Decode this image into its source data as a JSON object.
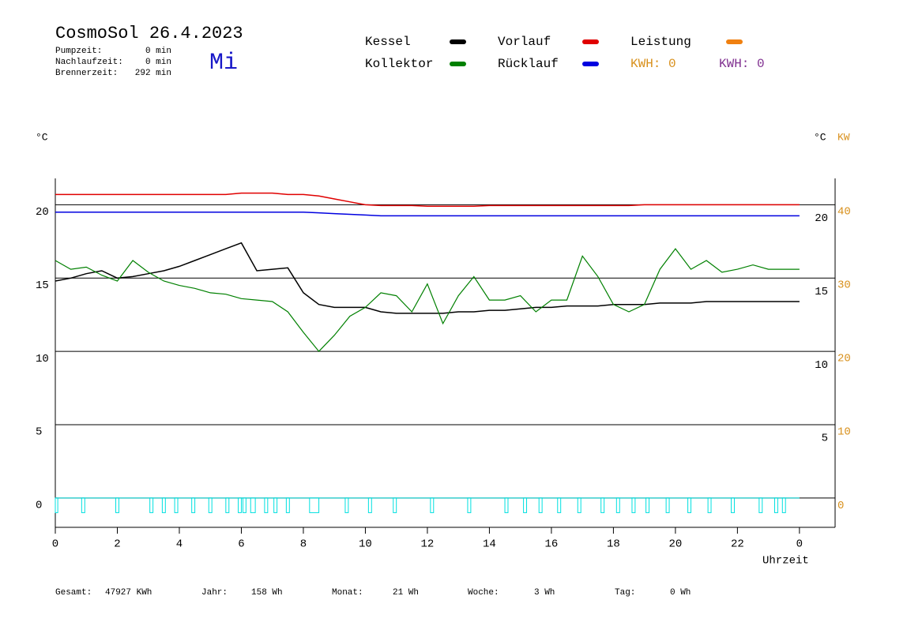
{
  "chart_data": {
    "type": "line",
    "title": "CosmoSol 26.4.2023",
    "weekday": "Mi",
    "stats": [
      {
        "label": "Pumpzeit:",
        "value": "0 min"
      },
      {
        "label": "Nachlaufzeit:",
        "value": "0 min"
      },
      {
        "label": "Brennerzeit:",
        "value": "292 min"
      }
    ],
    "kwh_labels": [
      {
        "text": "KWH: 0",
        "color": "#d8901c"
      },
      {
        "text": "KWH: 0",
        "color": "#803090"
      }
    ],
    "ylabel": "°C",
    "y2label_celsius": "°C",
    "y2label": "KW",
    "xlabel": "Uhrzeit",
    "xlim": [
      0,
      25.15
    ],
    "ylim": [
      -2,
      21.8
    ],
    "y2lim": [
      -3,
      44.5
    ],
    "xticks": [
      0,
      2,
      4,
      6,
      8,
      10,
      12,
      14,
      16,
      18,
      20,
      22,
      {
        "value": 24,
        "label": "0"
      }
    ],
    "yticks": [
      0,
      5,
      10,
      15,
      20
    ],
    "yticks_right": [
      5,
      10,
      15,
      20
    ],
    "y2ticks": [
      0,
      10,
      20,
      30,
      40
    ],
    "grid": true,
    "x": [
      0,
      0.5,
      1,
      1.5,
      2,
      2.5,
      3,
      3.5,
      4,
      4.5,
      5,
      5.5,
      6,
      6.5,
      7,
      7.5,
      8,
      8.5,
      9,
      9.5,
      10,
      10.5,
      11,
      11.5,
      12,
      12.5,
      13,
      13.5,
      14,
      14.5,
      15,
      15.5,
      16,
      16.5,
      17,
      17.5,
      18,
      18.5,
      19,
      19.5,
      20,
      20.5,
      21,
      21.5,
      22,
      22.5,
      23,
      23.5,
      24
    ],
    "series": [
      {
        "name": "Kessel",
        "color": "#000000",
        "values": [
          14.8,
          15.0,
          15.3,
          15.5,
          15.0,
          15.1,
          15.3,
          15.5,
          15.8,
          16.2,
          16.6,
          17.0,
          17.4,
          15.5,
          15.6,
          15.7,
          14.0,
          13.2,
          13.0,
          13.0,
          13.0,
          12.7,
          12.6,
          12.6,
          12.6,
          12.6,
          12.7,
          12.7,
          12.8,
          12.8,
          12.9,
          13.0,
          13.0,
          13.1,
          13.1,
          13.1,
          13.2,
          13.2,
          13.2,
          13.3,
          13.3,
          13.3,
          13.4,
          13.4,
          13.4,
          13.4,
          13.4,
          13.4,
          13.4
        ]
      },
      {
        "name": "Kollektor",
        "color": "#008000",
        "values": [
          16.2,
          15.6,
          15.75,
          15.2,
          14.8,
          16.2,
          15.4,
          14.8,
          14.5,
          14.3,
          14.0,
          13.9,
          13.6,
          13.5,
          13.4,
          12.7,
          11.3,
          10.0,
          11.1,
          12.4,
          13.0,
          14.0,
          13.8,
          12.7,
          14.6,
          11.9,
          13.8,
          15.1,
          13.5,
          13.5,
          13.8,
          12.7,
          13.5,
          13.5,
          16.5,
          15.1,
          13.2,
          12.7,
          13.2,
          15.6,
          17.0,
          15.6,
          16.2,
          15.4,
          15.6,
          15.9,
          15.6,
          15.6,
          15.6
        ]
      },
      {
        "name": "Vorlauf",
        "color": "#e00000",
        "values": [
          20.7,
          20.7,
          20.7,
          20.7,
          20.7,
          20.7,
          20.7,
          20.7,
          20.7,
          20.7,
          20.7,
          20.7,
          20.8,
          20.8,
          20.8,
          20.7,
          20.7,
          20.6,
          20.4,
          20.2,
          20.0,
          19.95,
          19.95,
          19.95,
          19.9,
          19.9,
          19.9,
          19.9,
          19.95,
          19.95,
          19.95,
          19.95,
          19.95,
          19.95,
          19.95,
          19.95,
          19.95,
          19.95,
          20.0,
          20.0,
          20.0,
          20.0,
          20.0,
          20.0,
          20.0,
          20.0,
          20.0,
          20.0,
          20.0
        ]
      },
      {
        "name": "Rücklauf",
        "color": "#0000e0",
        "values": [
          19.5,
          19.5,
          19.5,
          19.5,
          19.5,
          19.5,
          19.5,
          19.5,
          19.5,
          19.5,
          19.5,
          19.5,
          19.5,
          19.5,
          19.5,
          19.5,
          19.5,
          19.45,
          19.4,
          19.35,
          19.3,
          19.25,
          19.25,
          19.25,
          19.25,
          19.25,
          19.25,
          19.25,
          19.25,
          19.25,
          19.25,
          19.25,
          19.25,
          19.25,
          19.25,
          19.25,
          19.25,
          19.25,
          19.25,
          19.25,
          19.25,
          19.25,
          19.25,
          19.25,
          19.25,
          19.25,
          19.25,
          19.25,
          19.25
        ]
      },
      {
        "name": "Leistung",
        "color": "#f08010"
      }
    ],
    "pump": {
      "color": "#00e0e0",
      "level": -1,
      "starts": [
        0,
        0.85,
        1.95,
        3.05,
        3.45,
        3.85,
        4.4,
        4.95,
        5.5,
        5.9,
        6.05,
        6.3,
        6.75,
        7.05,
        7.45,
        8.2,
        9.35,
        10.1,
        10.9,
        12.1,
        13.3,
        14.5,
        15.1,
        15.6,
        16.2,
        16.85,
        17.6,
        18.1,
        18.6,
        19.05,
        19.7,
        20.4,
        21.05,
        21.8,
        22.7,
        23.2,
        23.45
      ],
      "ends": [
        0.08,
        0.95,
        2.05,
        3.15,
        3.55,
        3.95,
        4.5,
        5.05,
        5.6,
        6.0,
        6.15,
        6.45,
        6.85,
        7.15,
        7.55,
        8.5,
        9.45,
        10.2,
        11.0,
        12.2,
        13.4,
        14.6,
        15.2,
        15.7,
        16.3,
        16.95,
        17.7,
        18.2,
        18.7,
        19.15,
        19.8,
        20.5,
        21.15,
        21.9,
        22.8,
        23.3,
        23.55
      ]
    },
    "footer": [
      {
        "label": "Gesamt:",
        "value": "47927 KWh"
      },
      {
        "label": "Jahr:",
        "value": "158 Wh"
      },
      {
        "label": "Monat:",
        "value": "21 Wh"
      },
      {
        "label": "Woche:",
        "value": "3 Wh"
      },
      {
        "label": "Tag:",
        "value": "0 Wh"
      }
    ]
  }
}
